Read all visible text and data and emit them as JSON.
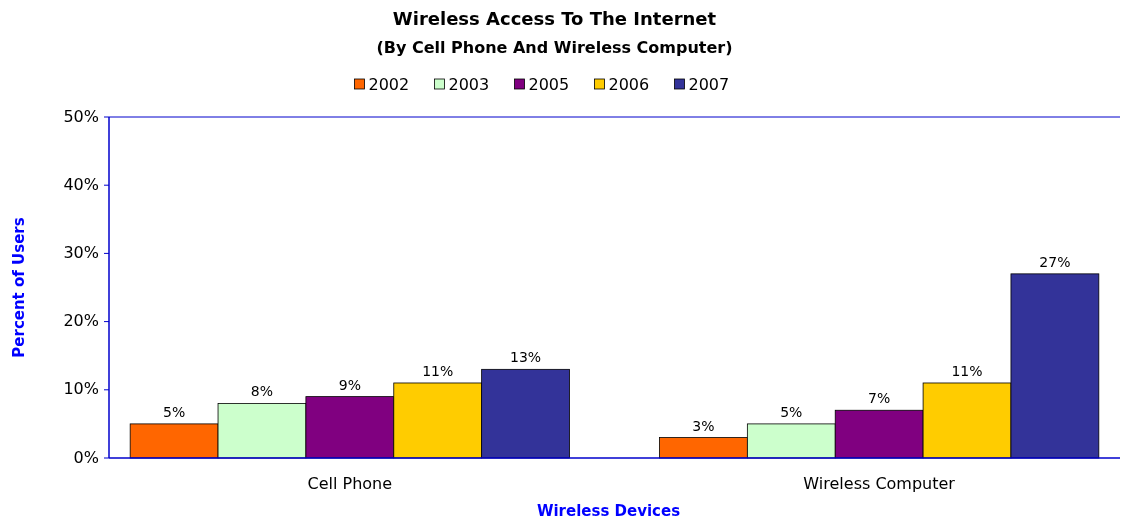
{
  "chart_data": {
    "type": "bar",
    "title": "Wireless Access To The Internet",
    "subtitle": "(By Cell Phone And Wireless Computer)",
    "xlabel": "Wireless Devices",
    "ylabel": "Percent of Users",
    "categories": [
      "Cell Phone",
      "Wireless Computer"
    ],
    "series": [
      {
        "name": "2002",
        "color": "#ff6600",
        "values": [
          5,
          3
        ],
        "value_labels": [
          "5%",
          "3%"
        ]
      },
      {
        "name": "2003",
        "color": "#ccffcc",
        "values": [
          8,
          5
        ],
        "value_labels": [
          "8%",
          "5%"
        ]
      },
      {
        "name": "2005",
        "color": "#800080",
        "values": [
          9,
          7
        ],
        "value_labels": [
          "9%",
          "7%"
        ]
      },
      {
        "name": "2006",
        "color": "#ffcc00",
        "values": [
          11,
          11
        ],
        "value_labels": [
          "11%",
          "11%"
        ]
      },
      {
        "name": "2007",
        "color": "#333399",
        "values": [
          13,
          27
        ],
        "value_labels": [
          "13%",
          "27%"
        ]
      }
    ],
    "ylim": [
      0,
      50
    ],
    "yticks": [
      {
        "value": 0,
        "label": "0%"
      },
      {
        "value": 10,
        "label": "10%"
      },
      {
        "value": 20,
        "label": "20%"
      },
      {
        "value": 30,
        "label": "30%"
      },
      {
        "value": 40,
        "label": "40%"
      },
      {
        "value": 50,
        "label": "50%"
      }
    ],
    "grid": false,
    "legend": "top"
  }
}
